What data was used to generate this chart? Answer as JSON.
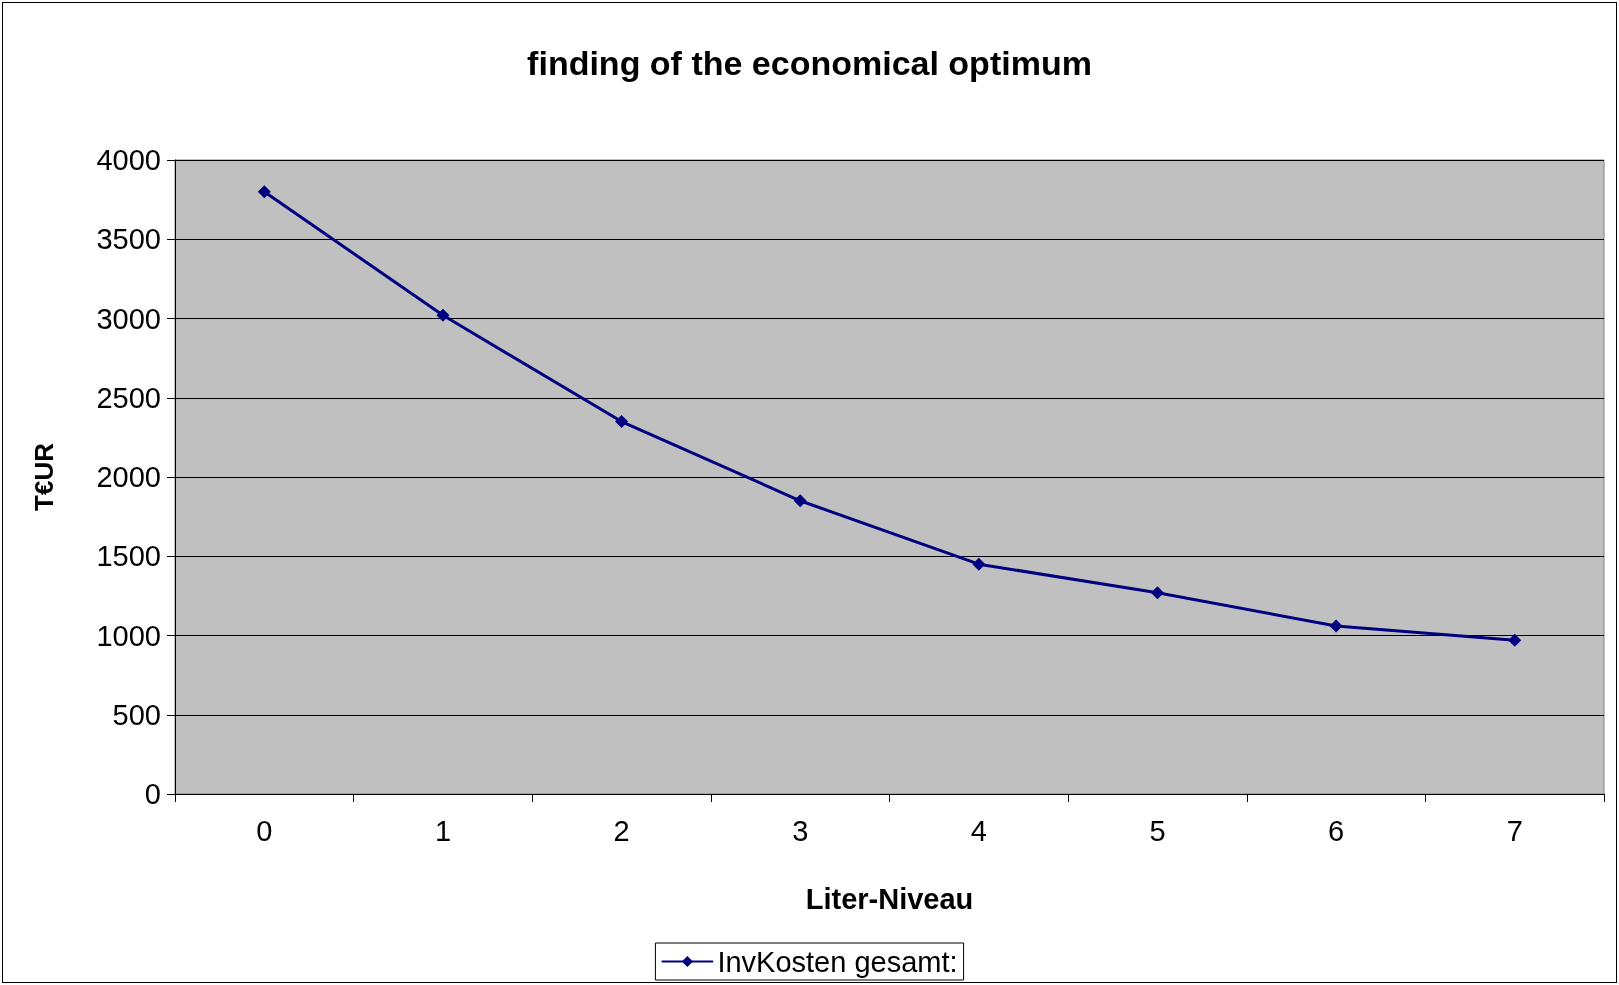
{
  "chart_data": {
    "type": "line",
    "title": "finding of the economical optimum",
    "xlabel": "Liter-Niveau",
    "ylabel": "T€UR",
    "categories": [
      "0",
      "1",
      "2",
      "3",
      "4",
      "5",
      "6",
      "7"
    ],
    "series": [
      {
        "name": "InvKosten gesamt:",
        "color": "#000080",
        "values": [
          3800,
          3020,
          2350,
          1850,
          1450,
          1270,
          1060,
          970
        ]
      }
    ],
    "ylim": [
      0,
      4000
    ],
    "yticks": [
      0,
      500,
      1000,
      1500,
      2000,
      2500,
      3000,
      3500,
      4000
    ],
    "grid": "y",
    "legend": "bottom",
    "marker": "diamond",
    "line_style": "solid"
  }
}
